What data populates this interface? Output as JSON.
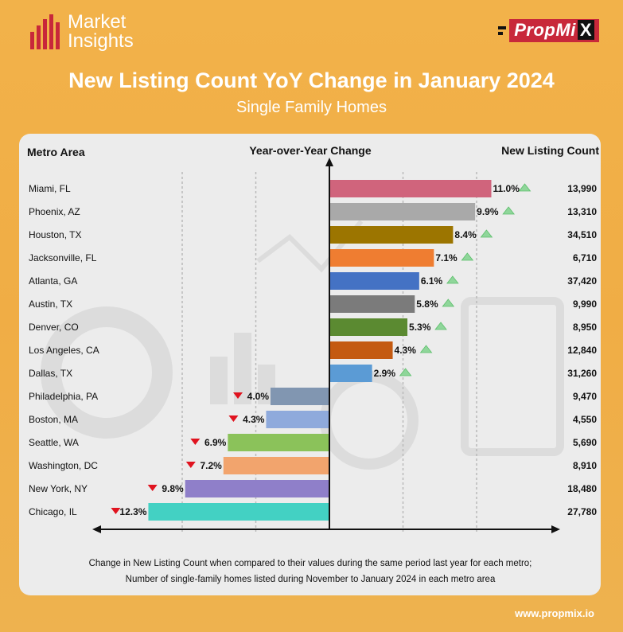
{
  "brand": {
    "line1": "Market",
    "line2": "Insights"
  },
  "logo": {
    "text": "PropMi",
    "x": "X"
  },
  "header": {
    "title": "New Listing Count YoY Change in January 2024",
    "subtitle": "Single Family Homes"
  },
  "footer": {
    "url": "www.propmix.io"
  },
  "chart_data": {
    "type": "bar",
    "orientation": "horizontal",
    "columns": {
      "left": "Metro Area",
      "center": "Year-over-Year Change",
      "right": "New Listing Count"
    },
    "categories": [
      "Miami, FL",
      "Phoenix, AZ",
      "Houston, TX",
      "Jacksonville, FL",
      "Atlanta, GA",
      "Austin, TX",
      "Denver, CO",
      "Los Angeles, CA",
      "Dallas, TX",
      "Philadelphia, PA",
      "Boston, MA",
      "Seattle, WA",
      "Washington, DC",
      "New York, NY",
      "Chicago, IL"
    ],
    "values": [
      11.0,
      9.9,
      8.4,
      7.1,
      6.1,
      5.8,
      5.3,
      4.3,
      2.9,
      -4.0,
      -4.3,
      -6.9,
      -7.2,
      -9.8,
      -12.3
    ],
    "value_labels": [
      "11.0%",
      "9.9%",
      "8.4%",
      "7.1%",
      "6.1%",
      "5.8%",
      "5.3%",
      "4.3%",
      "2.9%",
      "4.0%",
      "4.3%",
      "6.9%",
      "7.2%",
      "9.8%",
      "12.3%"
    ],
    "listing_counts": [
      "13,990",
      "13,310",
      "34,510",
      "6,710",
      "37,420",
      "9,990",
      "8,950",
      "12,840",
      "31,260",
      "9,470",
      "4,550",
      "5,690",
      "8,910",
      "18,480",
      "27,780"
    ],
    "colors": [
      "#d0647c",
      "#a9a9a9",
      "#9c7500",
      "#ef7d31",
      "#4472c4",
      "#7b7b7b",
      "#5b8a31",
      "#c45a11",
      "#5b9bd5",
      "#8196b1",
      "#8faadc",
      "#8bc25a",
      "#f2a46d",
      "#8f7fc9",
      "#43d1c3"
    ],
    "up_color": "#8fd69a",
    "down_color": "#e0131f",
    "xlim": [
      -13,
      13
    ],
    "notes": [
      "Change in New Listing Count when compared to their values during the same period last year for each metro;",
      "Number of single-family homes listed during November to January 2024 in each metro area"
    ]
  }
}
